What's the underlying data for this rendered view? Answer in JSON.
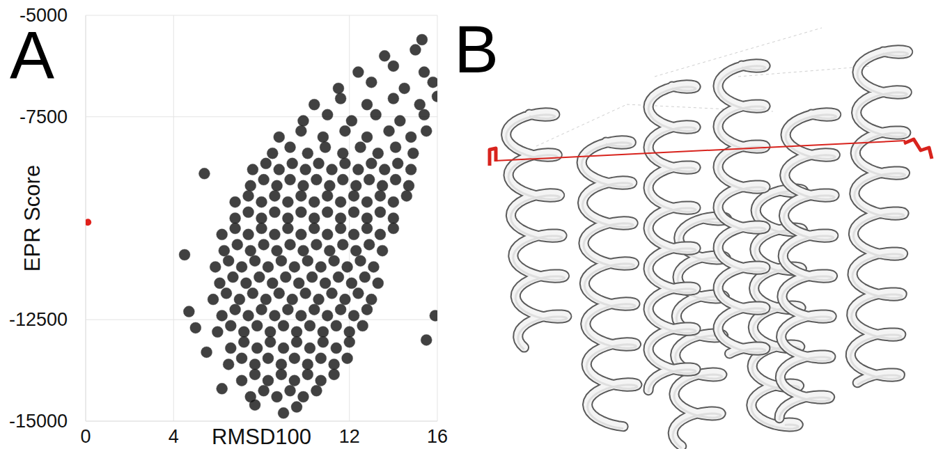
{
  "panel_labels": [
    "A",
    "B"
  ],
  "chart_data": {
    "type": "scatter",
    "xlabel": "RMSD100",
    "ylabel": "EPR Score",
    "xlim": [
      0,
      16
    ],
    "ylim": [
      -15000,
      -5000
    ],
    "xticks": [
      0,
      4,
      12,
      16
    ],
    "yticks": [
      -15000,
      -12500,
      -7500,
      -5000
    ],
    "grid": true,
    "series": [
      {
        "color": "#111111",
        "marker": "circle",
        "x": [
          9.0,
          9.6,
          7.5,
          8.1,
          8.7,
          9.3,
          9.9,
          10.5,
          7.1,
          7.7,
          8.3,
          8.9,
          9.5,
          10.1,
          10.7,
          11.3,
          6.5,
          7.1,
          7.7,
          8.3,
          8.9,
          9.5,
          10.1,
          10.7,
          11.3,
          11.9,
          6.6,
          7.2,
          7.8,
          8.4,
          9.0,
          9.6,
          10.2,
          10.8,
          11.4,
          12.0,
          6.0,
          6.6,
          7.2,
          7.8,
          8.4,
          9.0,
          9.6,
          10.2,
          10.8,
          11.4,
          12.0,
          12.6,
          6.2,
          6.8,
          7.4,
          8.0,
          8.6,
          9.2,
          9.8,
          10.4,
          11.0,
          11.6,
          12.2,
          12.8,
          5.8,
          6.4,
          7.0,
          7.6,
          8.2,
          8.8,
          9.4,
          10.0,
          10.6,
          11.2,
          11.8,
          12.4,
          13.0,
          6.1,
          6.7,
          7.3,
          7.9,
          8.5,
          9.1,
          9.7,
          10.3,
          10.9,
          11.5,
          12.1,
          12.7,
          13.3,
          5.9,
          6.5,
          7.1,
          7.7,
          8.3,
          8.9,
          9.5,
          10.1,
          10.7,
          11.3,
          11.9,
          12.5,
          13.1,
          6.3,
          6.9,
          7.5,
          8.1,
          8.7,
          9.3,
          9.9,
          10.5,
          11.1,
          11.7,
          12.3,
          12.9,
          13.5,
          6.2,
          6.8,
          7.4,
          8.0,
          8.6,
          9.2,
          9.8,
          10.4,
          11.0,
          11.6,
          12.2,
          12.8,
          13.4,
          14.0,
          6.8,
          7.4,
          8.0,
          8.6,
          9.2,
          9.8,
          10.4,
          11.0,
          11.6,
          12.2,
          12.8,
          13.4,
          14.0,
          6.8,
          7.4,
          8.0,
          8.6,
          9.2,
          9.8,
          10.4,
          11.0,
          11.6,
          12.2,
          12.8,
          13.4,
          14.0,
          14.6,
          7.5,
          8.1,
          8.7,
          9.3,
          9.9,
          10.5,
          11.1,
          11.7,
          12.3,
          12.9,
          13.5,
          14.1,
          14.7,
          7.6,
          8.2,
          8.8,
          9.4,
          10.0,
          10.6,
          11.2,
          11.8,
          12.4,
          13.0,
          13.6,
          14.2,
          14.8,
          8.5,
          9.3,
          10.1,
          10.9,
          11.7,
          12.5,
          13.3,
          14.1,
          14.9,
          8.8,
          9.8,
          10.8,
          11.8,
          12.8,
          13.8,
          14.8,
          15.5,
          9.9,
          11.0,
          12.1,
          13.2,
          14.3,
          15.4,
          10.4,
          11.6,
          12.8,
          14.0,
          15.2,
          11.5,
          13.0,
          14.5,
          15.8,
          12.4,
          14.0,
          15.4,
          13.6,
          15.0,
          15.3,
          4.5,
          4.7,
          5.0,
          5.5,
          5.4,
          6.2,
          15.9,
          15.5,
          16.0,
          7.7
        ],
        "values": [
          -14800,
          -14650,
          -14400,
          -14250,
          -14400,
          -14250,
          -14400,
          -14250,
          -14000,
          -13850,
          -14000,
          -13850,
          -14000,
          -13850,
          -14000,
          -13850,
          -13600,
          -13450,
          -13600,
          -13450,
          -13600,
          -13450,
          -13600,
          -13450,
          -13600,
          -13450,
          -13200,
          -13050,
          -13200,
          -13050,
          -13200,
          -13050,
          -13200,
          -13050,
          -13200,
          -13050,
          -12800,
          -12650,
          -12800,
          -12650,
          -12800,
          -12650,
          -12800,
          -12650,
          -12800,
          -12650,
          -12800,
          -12650,
          -12400,
          -12250,
          -12400,
          -12250,
          -12400,
          -12250,
          -12400,
          -12250,
          -12400,
          -12250,
          -12400,
          -12250,
          -12000,
          -11850,
          -12000,
          -11850,
          -12000,
          -11850,
          -12000,
          -11850,
          -12000,
          -11850,
          -12000,
          -11850,
          -12000,
          -11600,
          -11450,
          -11600,
          -11450,
          -11600,
          -11450,
          -11600,
          -11450,
          -11600,
          -11450,
          -11600,
          -11450,
          -11600,
          -11200,
          -11050,
          -11200,
          -11050,
          -11200,
          -11050,
          -11200,
          -11050,
          -11200,
          -11050,
          -11200,
          -11050,
          -11200,
          -10800,
          -10650,
          -10800,
          -10650,
          -10800,
          -10650,
          -10800,
          -10650,
          -10800,
          -10650,
          -10800,
          -10650,
          -10800,
          -10400,
          -10250,
          -10400,
          -10250,
          -10400,
          -10250,
          -10400,
          -10250,
          -10400,
          -10250,
          -10400,
          -10250,
          -10400,
          -10250,
          -10000,
          -9850,
          -10000,
          -9850,
          -10000,
          -9850,
          -10000,
          -9850,
          -10000,
          -9850,
          -10000,
          -9850,
          -10000,
          -9600,
          -9450,
          -9600,
          -9450,
          -9600,
          -9450,
          -9600,
          -9450,
          -9600,
          -9450,
          -9600,
          -9450,
          -9600,
          -9450,
          -9200,
          -9050,
          -9200,
          -9050,
          -9200,
          -9050,
          -9200,
          -9050,
          -9200,
          -9050,
          -9200,
          -9050,
          -9200,
          -8800,
          -8650,
          -8800,
          -8650,
          -8800,
          -8650,
          -8800,
          -8650,
          -8800,
          -8650,
          -8800,
          -8650,
          -8800,
          -8400,
          -8250,
          -8400,
          -8250,
          -8400,
          -8250,
          -8400,
          -8250,
          -8400,
          -8000,
          -7850,
          -8000,
          -7850,
          -8000,
          -7850,
          -8000,
          -7850,
          -7600,
          -7450,
          -7600,
          -7450,
          -7600,
          -7450,
          -7200,
          -7050,
          -7200,
          -7050,
          -7200,
          -6800,
          -6650,
          -6800,
          -6650,
          -6400,
          -6250,
          -6400,
          -6000,
          -5850,
          -5600,
          -10900,
          -12300,
          -12700,
          -13300,
          -8900,
          -14200,
          -12400,
          -13000,
          -7000,
          -14600
        ]
      },
      {
        "color": "#e0201b",
        "marker": "circle",
        "x": [
          0.1
        ],
        "values": [
          -10100
        ]
      }
    ]
  }
}
